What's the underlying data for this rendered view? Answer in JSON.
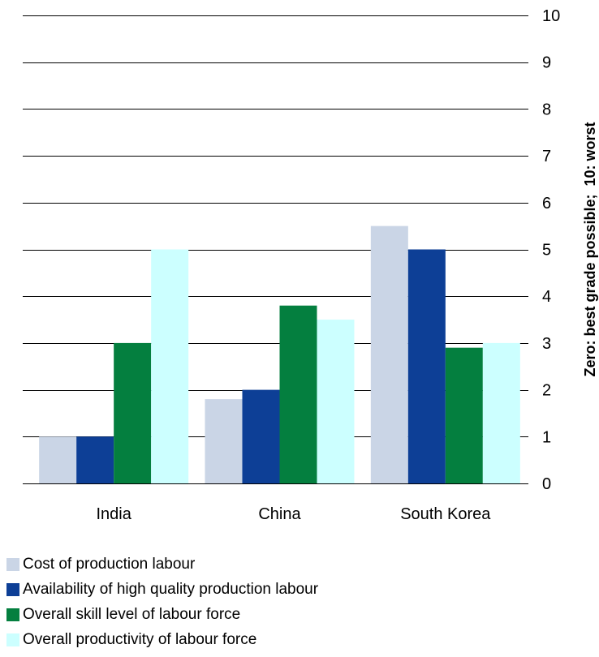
{
  "chart_data": {
    "type": "bar",
    "categories": [
      "India",
      "China",
      "South Korea"
    ],
    "series": [
      {
        "name": "Cost of production labour",
        "color": "#cad5e6",
        "values": [
          1,
          1.8,
          5.5
        ]
      },
      {
        "name": "Availability of high quality production labour",
        "color": "#0d3f96",
        "values": [
          1,
          2,
          5
        ]
      },
      {
        "name": "Overall skill level of labour force",
        "color": "#047f3f",
        "values": [
          3,
          3.8,
          2.9
        ]
      },
      {
        "name": "Overall productivity of labour force",
        "color": "#ccffff",
        "values": [
          5,
          3.5,
          3
        ]
      }
    ],
    "ylabel": "Zero: best grade possible;  10: worst",
    "ylim": [
      0,
      10
    ],
    "yticks": [
      0,
      1,
      2,
      3,
      4,
      5,
      6,
      7,
      8,
      9,
      10
    ],
    "grid": true,
    "y_axis_side": "right",
    "legend_position": "bottom"
  }
}
